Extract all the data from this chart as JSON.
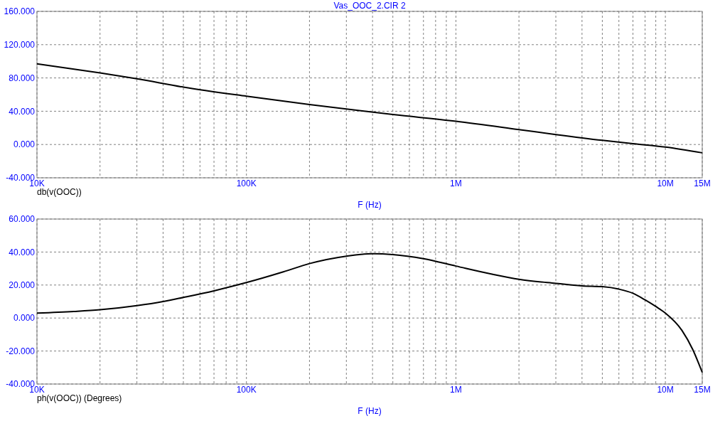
{
  "chart_data": [
    {
      "type": "line",
      "title": "Vas_OOC_2.CIR 2",
      "legend": "bottom left",
      "xlabel": "F (Hz)",
      "log": "x",
      "grid": true,
      "marker": "none",
      "line_style": "solid",
      "xlim": [
        10000,
        15000000
      ],
      "ylim": [
        -40,
        160
      ],
      "xticks": [
        {
          "value": 10000,
          "label": "10K"
        },
        {
          "value": 20000,
          "label": null
        },
        {
          "value": 30000,
          "label": null
        },
        {
          "value": 40000,
          "label": null
        },
        {
          "value": 50000,
          "label": null
        },
        {
          "value": 60000,
          "label": null
        },
        {
          "value": 70000,
          "label": null
        },
        {
          "value": 80000,
          "label": null
        },
        {
          "value": 90000,
          "label": null
        },
        {
          "value": 100000,
          "label": "100K"
        },
        {
          "value": 200000,
          "label": null
        },
        {
          "value": 300000,
          "label": null
        },
        {
          "value": 400000,
          "label": null
        },
        {
          "value": 500000,
          "label": null
        },
        {
          "value": 600000,
          "label": null
        },
        {
          "value": 700000,
          "label": null
        },
        {
          "value": 800000,
          "label": null
        },
        {
          "value": 900000,
          "label": null
        },
        {
          "value": 1000000,
          "label": "1M"
        },
        {
          "value": 2000000,
          "label": null
        },
        {
          "value": 3000000,
          "label": null
        },
        {
          "value": 4000000,
          "label": null
        },
        {
          "value": 5000000,
          "label": null
        },
        {
          "value": 6000000,
          "label": null
        },
        {
          "value": 7000000,
          "label": null
        },
        {
          "value": 8000000,
          "label": null
        },
        {
          "value": 9000000,
          "label": null
        },
        {
          "value": 10000000,
          "label": "10M"
        },
        {
          "value": 15000000,
          "label": "15M"
        }
      ],
      "yticks": [
        {
          "value": -40,
          "label": "-40.000"
        },
        {
          "value": 0,
          "label": "0.000"
        },
        {
          "value": 40,
          "label": "40.000"
        },
        {
          "value": 80,
          "label": "80.000"
        },
        {
          "value": 120,
          "label": "120.000"
        },
        {
          "value": 160,
          "label": "160.000"
        }
      ],
      "x": [
        10000,
        20000,
        30000,
        50000,
        100000,
        200000,
        500000,
        1000000,
        2000000,
        3000000,
        5000000,
        7000000,
        10000000,
        15000000
      ],
      "series": [
        {
          "name": "db(v(OOC))",
          "color": "#000000",
          "values": [
            97,
            86,
            79,
            69,
            58,
            48,
            36,
            28,
            18,
            12,
            5,
            1,
            -3,
            -10
          ]
        }
      ]
    },
    {
      "type": "line",
      "legend": "bottom left",
      "xlabel": "F (Hz)",
      "log": "x",
      "grid": true,
      "marker": "none",
      "line_style": "solid",
      "xlim": [
        10000,
        15000000
      ],
      "ylim": [
        -40,
        60
      ],
      "xticks": [
        {
          "value": 10000,
          "label": "10K"
        },
        {
          "value": 20000,
          "label": null
        },
        {
          "value": 30000,
          "label": null
        },
        {
          "value": 40000,
          "label": null
        },
        {
          "value": 50000,
          "label": null
        },
        {
          "value": 60000,
          "label": null
        },
        {
          "value": 70000,
          "label": null
        },
        {
          "value": 80000,
          "label": null
        },
        {
          "value": 90000,
          "label": null
        },
        {
          "value": 100000,
          "label": "100K"
        },
        {
          "value": 200000,
          "label": null
        },
        {
          "value": 300000,
          "label": null
        },
        {
          "value": 400000,
          "label": null
        },
        {
          "value": 500000,
          "label": null
        },
        {
          "value": 600000,
          "label": null
        },
        {
          "value": 700000,
          "label": null
        },
        {
          "value": 800000,
          "label": null
        },
        {
          "value": 900000,
          "label": null
        },
        {
          "value": 1000000,
          "label": "1M"
        },
        {
          "value": 2000000,
          "label": null
        },
        {
          "value": 3000000,
          "label": null
        },
        {
          "value": 4000000,
          "label": null
        },
        {
          "value": 5000000,
          "label": null
        },
        {
          "value": 6000000,
          "label": null
        },
        {
          "value": 7000000,
          "label": null
        },
        {
          "value": 8000000,
          "label": null
        },
        {
          "value": 9000000,
          "label": null
        },
        {
          "value": 10000000,
          "label": "10M"
        },
        {
          "value": 15000000,
          "label": "15M"
        }
      ],
      "yticks": [
        {
          "value": -40,
          "label": "-40.000"
        },
        {
          "value": -20,
          "label": "-20.000"
        },
        {
          "value": 0,
          "label": "0.000"
        },
        {
          "value": 20,
          "label": "20.000"
        },
        {
          "value": 40,
          "label": "40.000"
        },
        {
          "value": 60,
          "label": "60.000"
        }
      ],
      "x": [
        10000,
        15000,
        20000,
        30000,
        40000,
        50000,
        70000,
        100000,
        150000,
        200000,
        300000,
        400000,
        500000,
        700000,
        1000000,
        1500000,
        2000000,
        3000000,
        4000000,
        5000000,
        6000000,
        7000000,
        8000000,
        9000000,
        10000000,
        12000000,
        13500000,
        15000000
      ],
      "series": [
        {
          "name": "ph(v(OOC)) (Degrees)",
          "color": "#000000",
          "values": [
            3,
            4,
            5,
            7.5,
            10,
            12.5,
            16.5,
            21.5,
            28,
            33,
            37.5,
            39,
            38.5,
            36,
            31.5,
            26.5,
            23.5,
            21,
            19.5,
            19,
            17.5,
            15,
            11,
            7,
            3,
            -7.5,
            -19,
            -33
          ]
        }
      ]
    }
  ]
}
